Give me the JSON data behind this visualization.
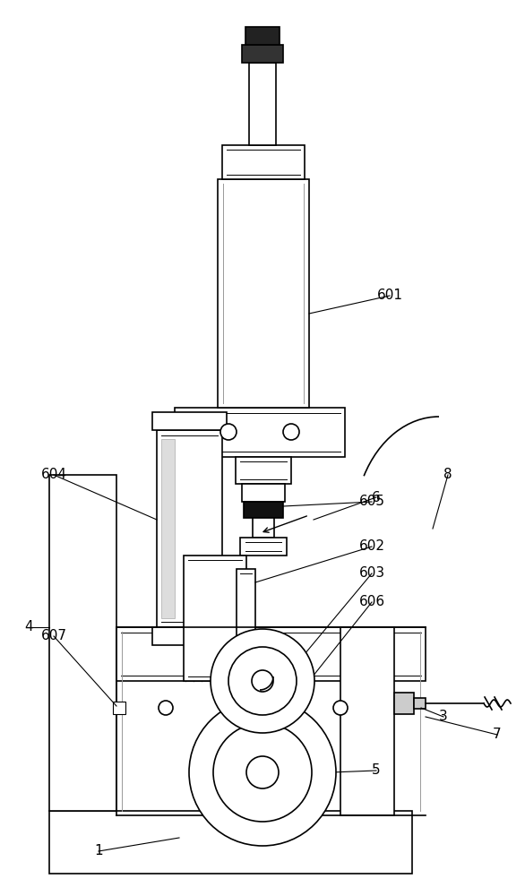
{
  "bg_color": "#ffffff",
  "lc": "#000000",
  "lw": 1.2,
  "fig_w": 5.86,
  "fig_h": 10.0,
  "dpi": 100
}
